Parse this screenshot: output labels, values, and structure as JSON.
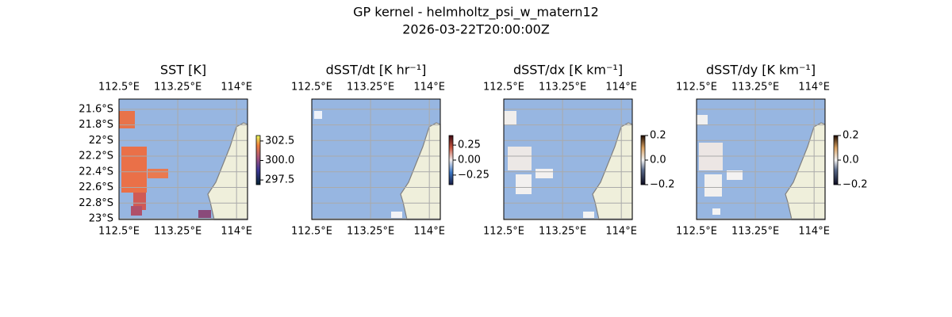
{
  "title": "GP kernel - helmholtz_psi_w_matern12",
  "subtitle": "2026-03-22T20:00:00Z",
  "map": {
    "lonlim": [
      112.5,
      114.14
    ],
    "latlim": [
      -21.47,
      -23.01
    ],
    "lon_ticks": [
      {
        "value": 112.5,
        "label": "112.5°E"
      },
      {
        "value": 113.25,
        "label": "113.25°E"
      },
      {
        "value": 114,
        "label": "114°E"
      }
    ],
    "lat_ticks": [
      {
        "value": -21.6,
        "label": "21.6°S"
      },
      {
        "value": -21.8,
        "label": "21.8°S"
      },
      {
        "value": -22,
        "label": "22°S"
      },
      {
        "value": -22.2,
        "label": "22.2°S"
      },
      {
        "value": -22.4,
        "label": "22.4°S"
      },
      {
        "value": -22.6,
        "label": "22.6°S"
      },
      {
        "value": -22.8,
        "label": "22.8°S"
      },
      {
        "value": -23,
        "label": "23°S"
      }
    ]
  },
  "panels": [
    {
      "title": "SST [K]",
      "lat_labels": true,
      "colormap": "thermal",
      "colorbar": {
        "lim": [
          296.9,
          303.2
        ],
        "ticks": [
          302.5,
          {
            "value": 300,
            "label": "300.0"
          },
          297.5
        ]
      }
    },
    {
      "title": "dSST/dt [K hr⁻¹]",
      "lat_labels": false,
      "colormap": "balance",
      "colorbar": {
        "lim": [
          -0.41,
          0.41
        ],
        "ticks": [
          0.25,
          {
            "value": 0,
            "label": "0.00"
          },
          {
            "value": -0.25,
            "label": "−0.25"
          }
        ]
      }
    },
    {
      "title": "dSST/dx [K km⁻¹]",
      "lat_labels": false,
      "colormap": "diverging-dark",
      "colorbar": {
        "lim": [
          -0.2,
          0.2
        ],
        "ticks": [
          0.2,
          {
            "value": 0,
            "label": "0.0"
          },
          {
            "value": -0.2,
            "label": "−0.2"
          }
        ]
      }
    },
    {
      "title": "dSST/dy [K km⁻¹]",
      "lat_labels": false,
      "colormap": "diverging-dark",
      "colorbar": {
        "lim": [
          -0.2,
          0.2
        ],
        "ticks": [
          0.2,
          {
            "value": 0,
            "label": "0.0"
          },
          {
            "value": -0.2,
            "label": "−0.2"
          }
        ]
      }
    }
  ]
}
